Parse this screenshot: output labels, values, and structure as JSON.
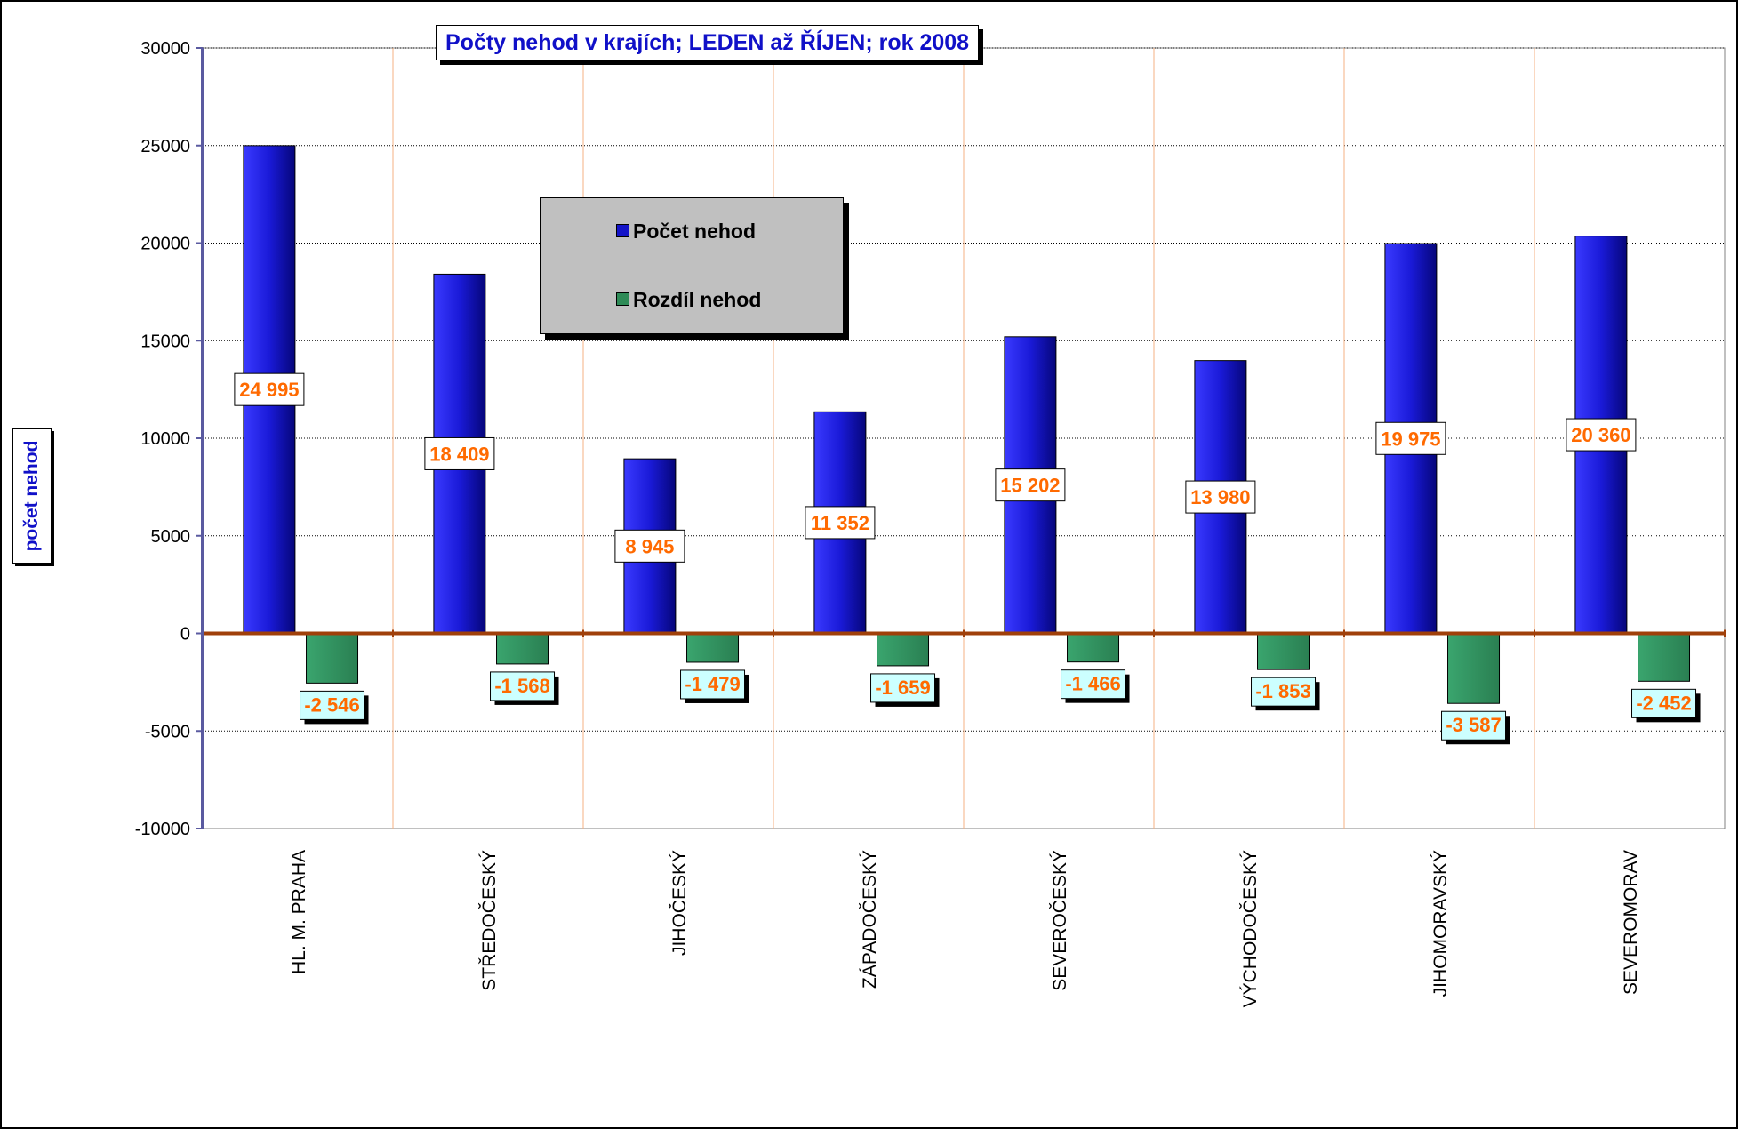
{
  "title": "Počty nehod v krajích; LEDEN až ŘÍJEN; rok  2008",
  "legend": [
    {
      "label": "Počet nehod",
      "color": "#1414c8"
    },
    {
      "label": "Rozdíl nehod",
      "color": "#2e8b57"
    }
  ],
  "chart_data": {
    "type": "bar",
    "title": "Počty nehod v krajích; LEDEN až ŘÍJEN; rok  2008",
    "xlabel": "",
    "ylabel": "počet nehod",
    "ylim": [
      -10000,
      30000
    ],
    "yticks": [
      30000,
      25000,
      20000,
      15000,
      10000,
      5000,
      0,
      -5000,
      -10000
    ],
    "grid": true,
    "legend_position": "center-top",
    "categories": [
      "HL. M. PRAHA",
      "STŘEDOČESKÝ",
      "JIHOČESKÝ",
      "ZÁPADOČESKÝ",
      "SEVEROČESKÝ",
      "VÝCHODOČESKÝ",
      "JIHOMORAVSKÝ",
      "SEVEROMORAV"
    ],
    "series": [
      {
        "name": "Počet nehod",
        "color": "#1414c8",
        "values": [
          24995,
          18409,
          8945,
          11352,
          15202,
          13980,
          19975,
          20360
        ],
        "labels": [
          "24 995",
          "18 409",
          "8 945",
          "11 352",
          "15 202",
          "13 980",
          "19 975",
          "20 360"
        ]
      },
      {
        "name": "Rozdíl nehod",
        "color": "#2e8b57",
        "values": [
          -2546,
          -1568,
          -1479,
          -1659,
          -1466,
          -1853,
          -3587,
          -2452
        ],
        "labels": [
          "-2 546",
          "-1 568",
          "-1 479",
          "-1 659",
          "-1 466",
          "-1 853",
          "-3 587",
          "-2 452"
        ]
      }
    ]
  }
}
